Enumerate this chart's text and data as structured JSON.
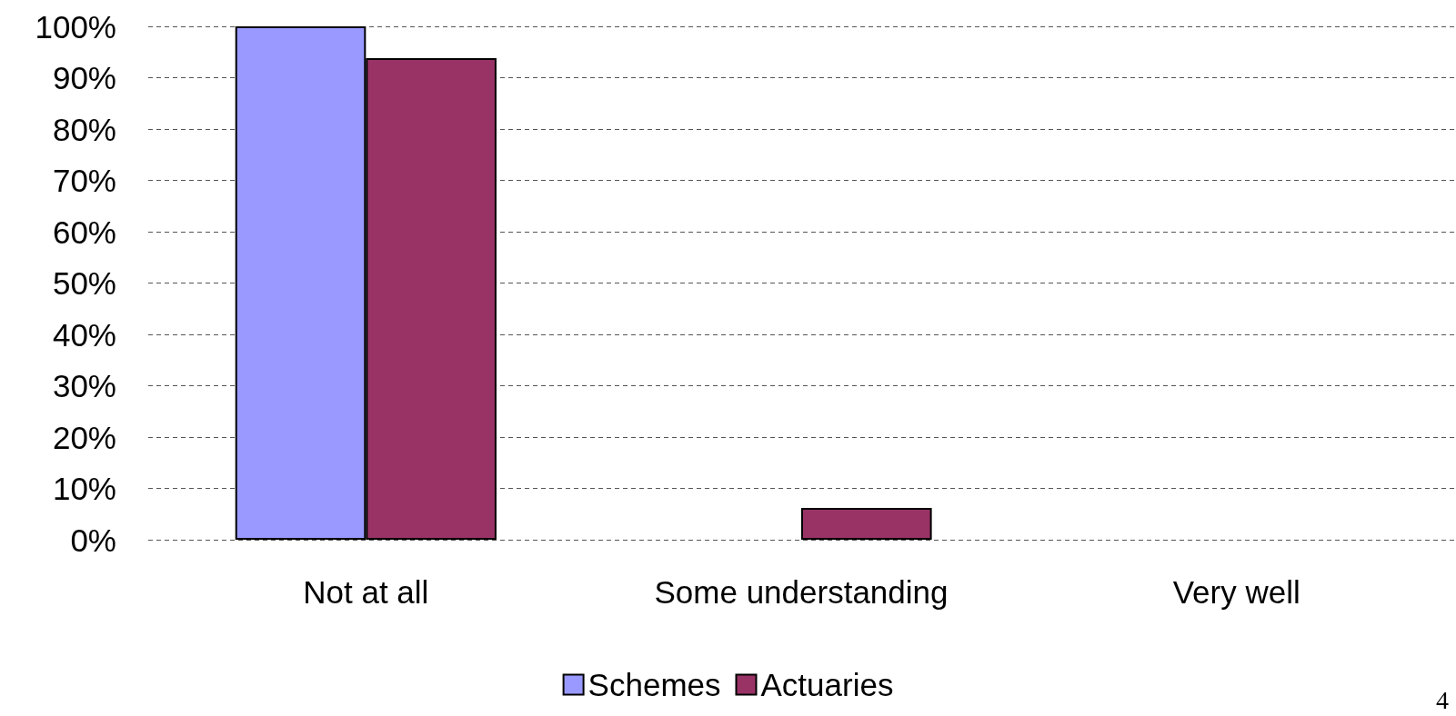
{
  "chart_data": {
    "type": "bar",
    "categories": [
      "Not at all",
      "Some understanding",
      "Very well"
    ],
    "series": [
      {
        "name": "Schemes",
        "color": "#9999ff",
        "values": [
          100,
          0,
          0
        ]
      },
      {
        "name": "Actuaries",
        "color": "#993366",
        "values": [
          93.8,
          6.2,
          0
        ]
      }
    ],
    "ylim": [
      0,
      100
    ],
    "yticks": [
      {
        "value": 0,
        "label": "0%"
      },
      {
        "value": 10,
        "label": "10%"
      },
      {
        "value": 20,
        "label": "20%"
      },
      {
        "value": 30,
        "label": "30%"
      },
      {
        "value": 40,
        "label": "40%"
      },
      {
        "value": 50,
        "label": "50%"
      },
      {
        "value": 60,
        "label": "60%"
      },
      {
        "value": 70,
        "label": "70%"
      },
      {
        "value": 80,
        "label": "80%"
      },
      {
        "value": 90,
        "label": "90%"
      },
      {
        "value": 100,
        "label": "100%"
      }
    ],
    "grid": "y",
    "legend": "bottom",
    "annotations": [
      "4"
    ]
  }
}
